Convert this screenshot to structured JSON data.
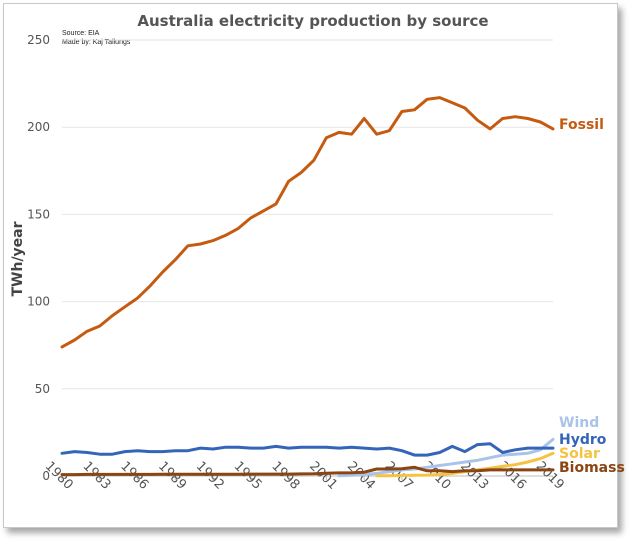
{
  "chart_data": {
    "type": "line",
    "title": "Australia electricity production by source",
    "source_note": "Source: EIA",
    "made_by_note": "Made by: Kaj Tallungs",
    "ylabel": "TWh/year",
    "xlabel": "",
    "ylim": [
      0,
      250
    ],
    "xlim": [
      1980,
      2019
    ],
    "y_ticks": [
      "0",
      "50",
      "100",
      "150",
      "200",
      "250"
    ],
    "x_ticks": [
      "1980",
      "1983",
      "1986",
      "1989",
      "1992",
      "1995",
      "1998",
      "2001",
      "2004",
      "2007",
      "2010",
      "2013",
      "2016",
      "2019"
    ],
    "grid": "horizontal",
    "legend": "labels at line ends (right)",
    "x": [
      1980,
      1981,
      1982,
      1983,
      1984,
      1985,
      1986,
      1987,
      1988,
      1989,
      1990,
      1991,
      1992,
      1993,
      1994,
      1995,
      1996,
      1997,
      1998,
      1999,
      2000,
      2001,
      2002,
      2003,
      2004,
      2005,
      2006,
      2007,
      2008,
      2009,
      2010,
      2011,
      2012,
      2013,
      2014,
      2015,
      2016,
      2017,
      2018,
      2019
    ],
    "series": [
      {
        "name": "Fossil",
        "color": "#c55a11",
        "values": [
          74,
          78,
          83,
          86,
          92,
          97,
          102,
          109,
          117,
          124,
          132,
          133,
          135,
          138,
          142,
          148,
          152,
          156,
          169,
          174,
          181,
          194,
          197,
          196,
          205,
          196,
          198,
          209,
          210,
          216,
          217,
          214,
          211,
          204,
          199,
          205,
          206,
          205,
          203,
          199
        ]
      },
      {
        "name": "Wind",
        "color": "#a9c4e8",
        "values": [
          null,
          null,
          null,
          null,
          null,
          null,
          null,
          null,
          null,
          null,
          null,
          null,
          null,
          null,
          null,
          null,
          null,
          null,
          null,
          null,
          null,
          null,
          0.2,
          0.4,
          0.8,
          1.5,
          2.5,
          3.5,
          4,
          5,
          6,
          7,
          8,
          9,
          10.5,
          12,
          12.5,
          13,
          15,
          21
        ]
      },
      {
        "name": "Hydro",
        "color": "#3465b8",
        "values": [
          13,
          14,
          13.5,
          12.5,
          12.5,
          14,
          14.5,
          14,
          14,
          14.5,
          14.5,
          16,
          15.5,
          16.5,
          16.5,
          16,
          16,
          17,
          16,
          16.5,
          16.5,
          16.5,
          16,
          16.5,
          16,
          15.5,
          16,
          14.5,
          12,
          12,
          13.5,
          17,
          14,
          18,
          18.5,
          13.5,
          15,
          16,
          16,
          16
        ]
      },
      {
        "name": "Solar",
        "color": "#f5c342",
        "values": [
          null,
          null,
          null,
          null,
          null,
          null,
          null,
          null,
          null,
          null,
          null,
          null,
          null,
          null,
          null,
          null,
          null,
          null,
          null,
          null,
          null,
          null,
          null,
          null,
          null,
          0.1,
          0.2,
          0.3,
          0.4,
          0.5,
          0.8,
          1.5,
          2.5,
          3.5,
          4.5,
          5.5,
          6.5,
          8,
          10,
          13
        ]
      },
      {
        "name": "Biomass",
        "color": "#8b4513",
        "values": [
          0.8,
          0.8,
          0.9,
          0.9,
          0.9,
          0.9,
          0.9,
          0.9,
          1,
          1,
          1,
          1,
          1,
          1,
          1,
          1.1,
          1.1,
          1.1,
          1.1,
          1.2,
          1.3,
          1.6,
          1.8,
          1.9,
          2.2,
          4,
          4,
          4.2,
          5,
          3,
          3,
          2.5,
          3,
          3,
          3.5,
          3.5,
          3.5,
          3.5,
          3.5,
          3.5
        ]
      }
    ]
  }
}
